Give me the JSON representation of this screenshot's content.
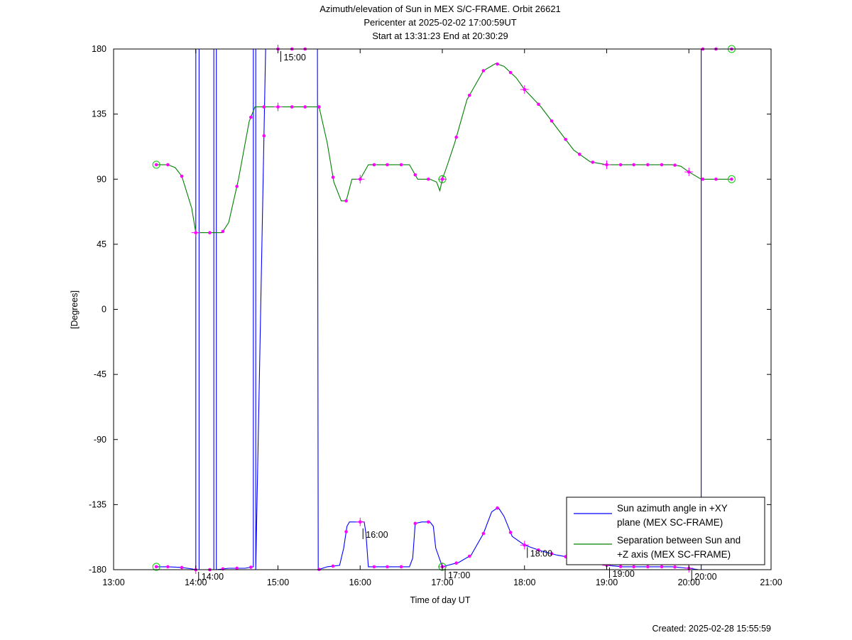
{
  "chart_data": {
    "type": "line",
    "title": [
      "Azimuth/elevation of Sun in MEX S/C-FRAME.  Orbit 26621",
      "Pericenter at 2025-02-02 17:00:59UT",
      "Start at 13:31:23 End at 20:30:29"
    ],
    "xlabel": "Time of day UT",
    "ylabel": "[Degrees]",
    "xlim": [
      13.0,
      21.0
    ],
    "ylim": [
      -180,
      180
    ],
    "xticks": [
      13,
      14,
      15,
      16,
      17,
      18,
      19,
      20,
      21
    ],
    "xtick_labels": [
      "13:00",
      "14:00",
      "15:00",
      "16:00",
      "17:00",
      "18:00",
      "19:00",
      "20:00",
      "21:00"
    ],
    "yticks": [
      -180,
      -135,
      -90,
      -45,
      0,
      45,
      90,
      135,
      180
    ],
    "ytick_labels": [
      "-180",
      "-135",
      "-90",
      "-45",
      "0",
      "45",
      "90",
      "135",
      "180"
    ],
    "grid": false,
    "legend_position": "bottom-right",
    "series": [
      {
        "name": "Sun azimuth angle in +XY plane (MEX SC-FRAME)",
        "legend_lines": [
          "Sun azimuth angle in +XY",
          "plane (MEX SC-FRAME)"
        ],
        "color": "#0000ff",
        "x": [
          13.52,
          13.66,
          13.83,
          13.96,
          13.99,
          14.0,
          14.0,
          14.03,
          14.04,
          14.04,
          14.1,
          14.22,
          14.22,
          14.24,
          14.25,
          14.25,
          14.4,
          14.6,
          14.7,
          14.7,
          14.72,
          14.73,
          14.73,
          14.85,
          15.0,
          15.2,
          15.4,
          15.48,
          15.49,
          15.49,
          15.6,
          15.75,
          15.8,
          15.84,
          15.87,
          15.95,
          16.05,
          16.07,
          16.1,
          16.2,
          16.4,
          16.6,
          16.64,
          16.67,
          16.75,
          16.85,
          16.89,
          16.92,
          17.0,
          17.2,
          17.35,
          17.5,
          17.6,
          17.68,
          17.75,
          17.85,
          18.0,
          18.2,
          18.4,
          18.6,
          18.8,
          19.0,
          19.2,
          19.5,
          19.8,
          20.0,
          20.12,
          20.13,
          20.15,
          20.15,
          20.3,
          20.52
        ],
        "y": [
          -178,
          -178,
          -178.5,
          -179.5,
          -180,
          -180,
          180,
          180,
          180,
          -180,
          -180,
          -180,
          180,
          180,
          180,
          -180,
          -179,
          -179,
          -178,
          180,
          180,
          180,
          -180,
          180,
          180,
          180,
          180,
          180,
          -180,
          -180,
          -178,
          -177,
          -165,
          -150,
          -147,
          -147,
          -147,
          -155,
          -178,
          -178,
          -178,
          -178,
          -172,
          -148,
          -147,
          -147,
          -150,
          -165,
          -178,
          -175,
          -170,
          -155,
          -140,
          -137,
          -143,
          -157,
          -163,
          -167,
          -170,
          -172,
          -175,
          -177,
          -178,
          -178,
          -178,
          -179,
          -180,
          -180,
          -180,
          180,
          180,
          180
        ]
      },
      {
        "name": "Separation between Sun and +Z axis (MEX SC-FRAME)",
        "legend_lines": [
          "Separation between Sun and",
          "+Z axis (MEX SC-FRAME)"
        ],
        "color": "#008000",
        "x": [
          13.52,
          13.66,
          13.75,
          13.83,
          13.95,
          14.0,
          14.1,
          14.25,
          14.32,
          14.4,
          14.52,
          14.65,
          14.72,
          14.85,
          15.0,
          15.2,
          15.35,
          15.5,
          15.6,
          15.68,
          15.77,
          15.83,
          15.9,
          16.0,
          16.1,
          16.2,
          16.4,
          16.6,
          16.7,
          16.85,
          16.93,
          16.97,
          17.0,
          17.05,
          17.15,
          17.3,
          17.5,
          17.65,
          17.75,
          17.9,
          18.0,
          18.2,
          18.4,
          18.6,
          18.8,
          19.0,
          19.2,
          19.5,
          19.8,
          19.9,
          20.0,
          20.15,
          20.35,
          20.52
        ],
        "y": [
          100,
          100,
          98,
          92,
          70,
          53,
          53,
          53,
          53,
          60,
          90,
          130,
          140,
          140,
          140,
          140,
          140,
          140,
          115,
          88,
          75,
          75,
          90,
          90,
          100,
          100,
          100,
          100,
          90,
          90,
          88,
          82,
          90,
          98,
          115,
          145,
          165,
          170,
          168,
          160,
          152,
          140,
          125,
          110,
          102,
          100,
          100,
          100,
          100,
          99,
          95,
          90,
          90,
          90
        ]
      }
    ],
    "markers": {
      "x": [
        13.52,
        13.66,
        13.83,
        14.0,
        14.17,
        14.33,
        14.5,
        14.67,
        14.83,
        15.0,
        15.17,
        15.33,
        15.5,
        15.67,
        15.83,
        16.0,
        16.17,
        16.33,
        16.5,
        16.67,
        16.83,
        17.0,
        17.17,
        17.33,
        17.5,
        17.67,
        17.83,
        18.0,
        18.17,
        18.33,
        18.5,
        18.67,
        18.83,
        19.0,
        19.17,
        19.33,
        19.5,
        19.67,
        19.83,
        20.0,
        20.17,
        20.33,
        20.52
      ],
      "start_end_x": [
        13.52,
        17.0,
        20.52
      ]
    },
    "hour_labels": [
      {
        "text": "14:00",
        "x": 14.0,
        "y": -180
      },
      {
        "text": "15:00",
        "x": 15.0,
        "y": 180
      },
      {
        "text": "16:00",
        "x": 16.0,
        "y": -150
      },
      {
        "text": "17:00",
        "x": 17.0,
        "y": -178
      },
      {
        "text": "18:00",
        "x": 18.0,
        "y": -163
      },
      {
        "text": "19:00",
        "x": 19.0,
        "y": -177
      },
      {
        "text": "20:00",
        "x": 20.0,
        "y": -179
      }
    ]
  },
  "footer": {
    "created": "Created: 2025-02-28 15:55:59"
  }
}
